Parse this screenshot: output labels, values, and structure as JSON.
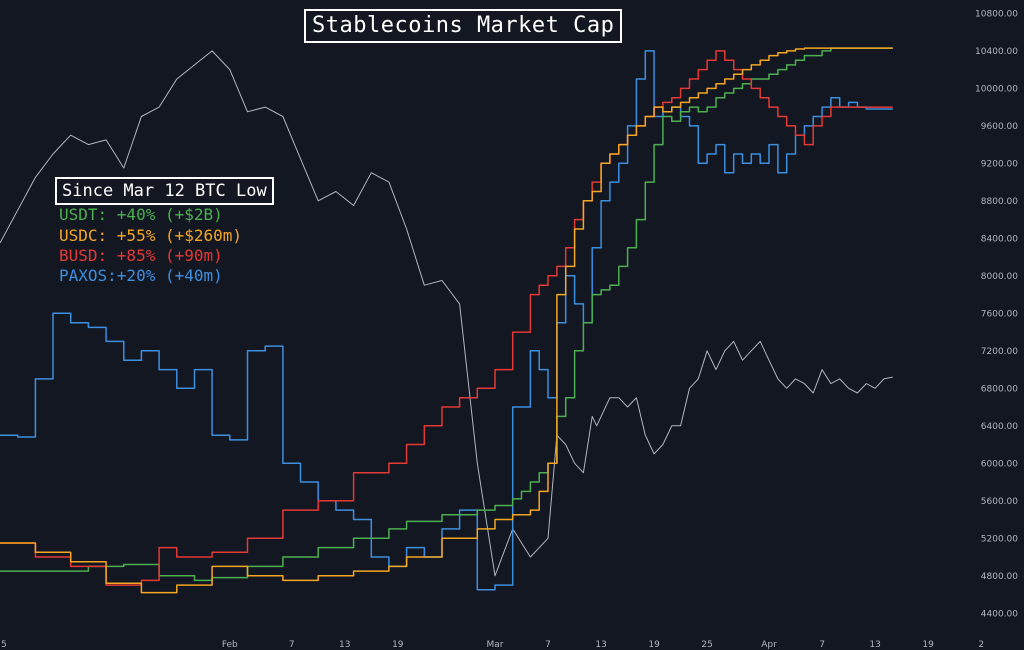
{
  "title": "Stablecoins Market Cap",
  "annotation": {
    "heading": "Since Mar 12 BTC Low",
    "rows": [
      {
        "text": "USDT: +40% (+$2B)",
        "color": "#4caf50"
      },
      {
        "text": "USDC: +55% (+$260m)",
        "color": "#f5a623"
      },
      {
        "text": "BUSD: +85% (+90m)",
        "color": "#e53935"
      },
      {
        "text": "PAXOS:+20% (+40m)",
        "color": "#3d8fe0"
      }
    ]
  },
  "colors": {
    "background": "#131722",
    "btc": "#b2b5be",
    "usdt": "#4caf50",
    "usdc": "#f5a623",
    "busd": "#e53935",
    "paxos": "#3d8fe0",
    "axis_text": "#b2b5be"
  },
  "chart_data": {
    "type": "line",
    "title": "Stablecoins Market Cap",
    "y_axis": {
      "position": "right",
      "ticks": [
        "10800.00",
        "10400.00",
        "10000.00",
        "9600.00",
        "9200.00",
        "8800.00",
        "8400.00",
        "8000.00",
        "7600.00",
        "7200.00",
        "6800.00",
        "6400.00",
        "6000.00",
        "5600.00",
        "5200.00",
        "4800.00",
        "4400.00"
      ],
      "ylim": [
        4200,
        10900
      ]
    },
    "x_axis": {
      "ticks": [
        "5",
        "Feb",
        "7",
        "13",
        "19",
        "Mar",
        "7",
        "13",
        "19",
        "25",
        "Apr",
        "7",
        "13",
        "19",
        "2"
      ],
      "tick_days": [
        -27,
        -1,
        6,
        12,
        18,
        29,
        35,
        41,
        47,
        53,
        60,
        66,
        72,
        78,
        84
      ],
      "xlim": [
        -27,
        85
      ],
      "unit": "days from Feb 1 2020"
    },
    "grid": false,
    "series": [
      {
        "key": "btc",
        "style": "line",
        "x": [
          -27,
          -25,
          -23,
          -21,
          -19,
          -17,
          -15,
          -13,
          -11,
          -9,
          -7,
          -5,
          -3,
          -1,
          1,
          3,
          5,
          7,
          9,
          11,
          13,
          15,
          17,
          19,
          21,
          23,
          25,
          27,
          29,
          31,
          33,
          35,
          36,
          37,
          38,
          39,
          40,
          40.5,
          41,
          42,
          43,
          44,
          45,
          46,
          47,
          48,
          49,
          50,
          51,
          52,
          53,
          54,
          55,
          56,
          57,
          58,
          59,
          60,
          61,
          62,
          63,
          64,
          65,
          66,
          67,
          68,
          69,
          70,
          71,
          72,
          73,
          74
        ],
        "y": [
          8350,
          8700,
          9050,
          9300,
          9500,
          9400,
          9450,
          9150,
          9700,
          9800,
          10100,
          10250,
          10400,
          10200,
          9750,
          9800,
          9700,
          9250,
          8800,
          8900,
          8750,
          9100,
          9000,
          8500,
          7900,
          7950,
          7700,
          6000,
          4800,
          5300,
          5000,
          5200,
          6300,
          6200,
          6000,
          5900,
          6500,
          6400,
          6500,
          6700,
          6700,
          6600,
          6700,
          6300,
          6100,
          6200,
          6400,
          6400,
          6800,
          6900,
          7200,
          7000,
          7200,
          7300,
          7100,
          7200,
          7300,
          7100,
          6900,
          6800,
          6900,
          6850,
          6750,
          7000,
          6850,
          6900,
          6800,
          6750,
          6850,
          6800,
          6900,
          6920
        ]
      },
      {
        "key": "usdt",
        "style": "step",
        "x": [
          -27,
          -17,
          -13,
          -9,
          -5,
          -3,
          1,
          5,
          9,
          13,
          17,
          19,
          23,
          27,
          29,
          31,
          32,
          33,
          34,
          35,
          36,
          37,
          38,
          39,
          40,
          41,
          42,
          43,
          44,
          45,
          46,
          47,
          48,
          49,
          50,
          51,
          52,
          53,
          54,
          55,
          56,
          57,
          58,
          59,
          60,
          61,
          62,
          63,
          64,
          65,
          66,
          67,
          68,
          69,
          70,
          71,
          72,
          73,
          74
        ],
        "y": [
          4850,
          4900,
          4920,
          4800,
          4750,
          4780,
          4900,
          5000,
          5100,
          5200,
          5300,
          5380,
          5450,
          5500,
          5550,
          5620,
          5700,
          5800,
          5900,
          6000,
          6500,
          6700,
          7200,
          7500,
          7800,
          7850,
          7900,
          8100,
          8300,
          8600,
          9000,
          9400,
          9700,
          9650,
          9750,
          9800,
          9750,
          9800,
          9900,
          9950,
          10000,
          10050,
          10100,
          10100,
          10150,
          10200,
          10250,
          10300,
          10350,
          10350,
          10400,
          10430,
          10430,
          10430,
          10430,
          10430,
          10430,
          10430,
          10430
        ]
      },
      {
        "key": "usdc",
        "style": "step",
        "x": [
          -27,
          -23,
          -19,
          -15,
          -11,
          -7,
          -3,
          1,
          5,
          9,
          13,
          17,
          19,
          23,
          27,
          29,
          31,
          33,
          34,
          35,
          36,
          37,
          38,
          39,
          40,
          41,
          42,
          43,
          44,
          45,
          46,
          47,
          48,
          49,
          50,
          51,
          52,
          53,
          54,
          55,
          56,
          57,
          58,
          59,
          60,
          61,
          62,
          63,
          64,
          65,
          66,
          67,
          68,
          69,
          70,
          71,
          72,
          73,
          74
        ],
        "y": [
          5150,
          5050,
          4950,
          4720,
          4620,
          4700,
          4900,
          4800,
          4750,
          4800,
          4850,
          4900,
          5000,
          5200,
          5300,
          5400,
          5450,
          5500,
          5700,
          6000,
          7800,
          8100,
          8500,
          8800,
          8900,
          9200,
          9300,
          9400,
          9500,
          9600,
          9700,
          9800,
          9750,
          9800,
          9850,
          9900,
          9950,
          10000,
          10050,
          10100,
          10150,
          10200,
          10250,
          10300,
          10350,
          10380,
          10400,
          10420,
          10430,
          10430,
          10430,
          10430,
          10430,
          10430,
          10430,
          10430,
          10430,
          10430,
          10430
        ]
      },
      {
        "key": "busd",
        "style": "step",
        "x": [
          -27,
          -23,
          -19,
          -15,
          -11,
          -9,
          -7,
          -3,
          1,
          5,
          9,
          13,
          17,
          19,
          21,
          23,
          25,
          27,
          29,
          31,
          33,
          34,
          35,
          36,
          37,
          38,
          39,
          40,
          41,
          42,
          43,
          44,
          45,
          46,
          47,
          48,
          49,
          50,
          51,
          52,
          53,
          54,
          55,
          56,
          57,
          58,
          59,
          60,
          61,
          62,
          63,
          64,
          65,
          66,
          67,
          68,
          69,
          70,
          71,
          72,
          73,
          74
        ],
        "y": [
          5150,
          5000,
          4900,
          4700,
          4750,
          5100,
          5000,
          5050,
          5200,
          5500,
          5600,
          5900,
          6000,
          6200,
          6400,
          6600,
          6700,
          6800,
          7000,
          7400,
          7800,
          7900,
          8000,
          8100,
          8300,
          8600,
          8800,
          9000,
          9200,
          9300,
          9400,
          9500,
          9600,
          9700,
          9800,
          9850,
          9900,
          10000,
          10100,
          10200,
          10300,
          10400,
          10300,
          10200,
          10100,
          10000,
          9900,
          9800,
          9700,
          9600,
          9500,
          9400,
          9600,
          9700,
          9800,
          9800,
          9800,
          9800,
          9800,
          9800,
          9800,
          9800
        ]
      },
      {
        "key": "paxos",
        "style": "step",
        "x": [
          -27,
          -25,
          -23,
          -21,
          -19,
          -17,
          -15,
          -13,
          -11,
          -9,
          -7,
          -5,
          -3,
          -1,
          1,
          3,
          5,
          7,
          9,
          11,
          13,
          15,
          17,
          19,
          21,
          23,
          25,
          27,
          29,
          31,
          33,
          34,
          35,
          36,
          37,
          38,
          39,
          40,
          41,
          42,
          43,
          44,
          45,
          46,
          47,
          48,
          49,
          50,
          51,
          52,
          53,
          54,
          55,
          56,
          57,
          58,
          59,
          60,
          61,
          62,
          63,
          64,
          65,
          66,
          67,
          68,
          69,
          70,
          71,
          72,
          73,
          74
        ],
        "y": [
          6300,
          6280,
          6900,
          7600,
          7500,
          7450,
          7300,
          7100,
          7200,
          7000,
          6800,
          7000,
          6300,
          6250,
          7200,
          7250,
          6000,
          5800,
          5600,
          5500,
          5400,
          5000,
          4900,
          5100,
          5000,
          5300,
          5500,
          4650,
          4700,
          6600,
          7200,
          7000,
          6700,
          7500,
          8000,
          7700,
          7500,
          8300,
          8800,
          9000,
          9200,
          9600,
          10100,
          10400,
          9700,
          9750,
          9800,
          9700,
          9600,
          9200,
          9300,
          9400,
          9100,
          9300,
          9200,
          9300,
          9200,
          9400,
          9100,
          9300,
          9500,
          9600,
          9700,
          9800,
          9900,
          9800,
          9850,
          9800,
          9780,
          9780,
          9780,
          9780
        ]
      }
    ]
  }
}
